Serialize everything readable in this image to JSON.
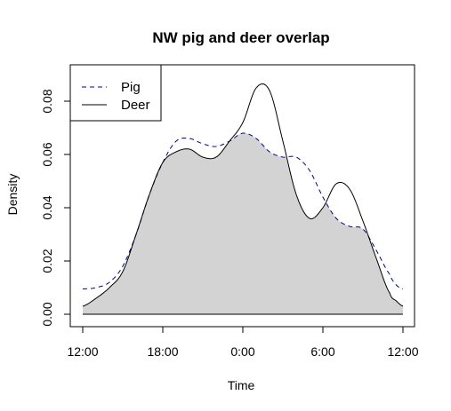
{
  "chart_data": {
    "type": "area",
    "title": "NW pig and deer overlap",
    "xlabel": "Time",
    "ylabel": "Density",
    "xlim": [
      0,
      24
    ],
    "ylim": [
      0,
      0.09
    ],
    "x_ticks": [
      {
        "value": 0,
        "label": "12:00"
      },
      {
        "value": 6,
        "label": "18:00"
      },
      {
        "value": 12,
        "label": "0:00"
      },
      {
        "value": 18,
        "label": "6:00"
      },
      {
        "value": 24,
        "label": "12:00"
      }
    ],
    "y_ticks": [
      {
        "value": 0,
        "label": "0.00"
      },
      {
        "value": 0.02,
        "label": "0.02"
      },
      {
        "value": 0.04,
        "label": "0.04"
      },
      {
        "value": 0.06,
        "label": "0.06"
      },
      {
        "value": 0.08,
        "label": "0.08"
      }
    ],
    "legend_position": "top-left",
    "overlap_fill": "#d3d3d3",
    "series": [
      {
        "name": "Pig",
        "color": "#00008b",
        "linestyle": "dashed",
        "points": [
          [
            0,
            0.0095
          ],
          [
            1,
            0.01
          ],
          [
            2,
            0.012
          ],
          [
            3,
            0.018
          ],
          [
            4,
            0.03
          ],
          [
            5,
            0.045
          ],
          [
            6,
            0.057
          ],
          [
            7,
            0.065
          ],
          [
            8,
            0.066
          ],
          [
            9,
            0.064
          ],
          [
            10,
            0.063
          ],
          [
            11,
            0.065
          ],
          [
            12,
            0.068
          ],
          [
            13,
            0.066
          ],
          [
            14,
            0.061
          ],
          [
            15,
            0.059
          ],
          [
            16,
            0.059
          ],
          [
            17,
            0.054
          ],
          [
            18,
            0.044
          ],
          [
            19,
            0.036
          ],
          [
            20,
            0.033
          ],
          [
            21,
            0.032
          ],
          [
            22,
            0.024
          ],
          [
            23,
            0.015
          ],
          [
            23.5,
            0.011
          ],
          [
            24,
            0.0095
          ]
        ]
      },
      {
        "name": "Deer",
        "color": "#000000",
        "linestyle": "solid",
        "points": [
          [
            0,
            0.003
          ],
          [
            1,
            0.006
          ],
          [
            2,
            0.01
          ],
          [
            3,
            0.016
          ],
          [
            4,
            0.03
          ],
          [
            5,
            0.045
          ],
          [
            6,
            0.057
          ],
          [
            7,
            0.061
          ],
          [
            8,
            0.062
          ],
          [
            9,
            0.059
          ],
          [
            10,
            0.059
          ],
          [
            11,
            0.065
          ],
          [
            12,
            0.072
          ],
          [
            13,
            0.085
          ],
          [
            14,
            0.084
          ],
          [
            15,
            0.065
          ],
          [
            16,
            0.045
          ],
          [
            17,
            0.036
          ],
          [
            18,
            0.04
          ],
          [
            19,
            0.049
          ],
          [
            20,
            0.047
          ],
          [
            21,
            0.035
          ],
          [
            22,
            0.021
          ],
          [
            23,
            0.008
          ],
          [
            23.5,
            0.005
          ],
          [
            24,
            0.003
          ]
        ]
      }
    ]
  }
}
